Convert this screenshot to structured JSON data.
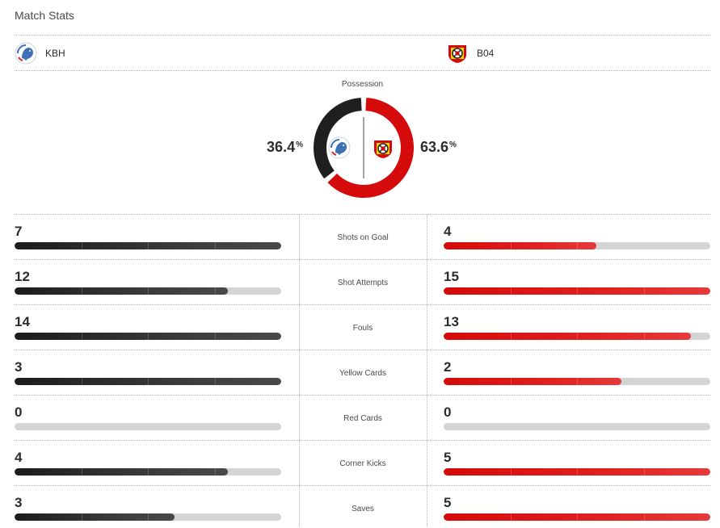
{
  "title": "Match Stats",
  "teams": {
    "home": {
      "abbr": "KBH",
      "logo_icon": "fc-copenhagen-crest-icon",
      "color": "#1f1f1f"
    },
    "away": {
      "abbr": "B04",
      "logo_icon": "bayer-leverkusen-crest-icon",
      "color": "#d50a0a"
    }
  },
  "possession": {
    "label": "Possession",
    "home_value": "36.4",
    "away_value": "63.6",
    "unit": "%"
  },
  "stats": [
    {
      "label": "Shots on Goal",
      "home": 7,
      "away": 4
    },
    {
      "label": "Shot Attempts",
      "home": 12,
      "away": 15
    },
    {
      "label": "Fouls",
      "home": 14,
      "away": 13
    },
    {
      "label": "Yellow Cards",
      "home": 3,
      "away": 2
    },
    {
      "label": "Red Cards",
      "home": 0,
      "away": 0
    },
    {
      "label": "Corner Kicks",
      "home": 4,
      "away": 5
    },
    {
      "label": "Saves",
      "home": 3,
      "away": 5
    }
  ]
}
